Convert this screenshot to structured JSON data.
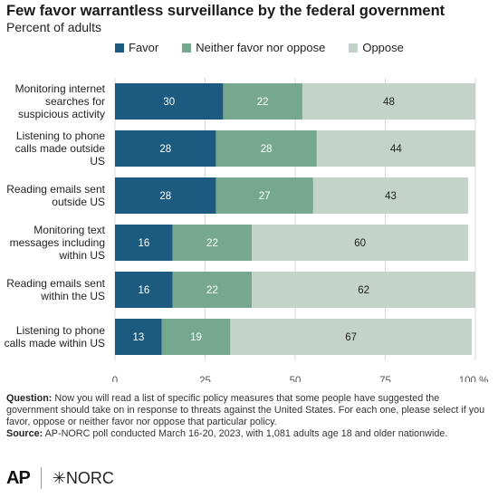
{
  "header": {
    "title": "Few favor warrantless surveillance by the federal government",
    "subtitle": "Percent of adults"
  },
  "colors": {
    "favor": "#1c5b7f",
    "neither": "#76a88f",
    "oppose": "#c3d3ca",
    "gridline": "#d9d9d9",
    "axis_text": "#555555"
  },
  "chart_data": {
    "type": "bar",
    "orientation": "horizontal",
    "stacked": true,
    "title": "Few favor warrantless surveillance by the federal government",
    "subtitle": "Percent of adults",
    "categories": [
      "Monitoring internet searches for suspicious activity",
      "Listening to phone calls made outside US",
      "Reading emails sent outside US",
      "Monitoring text messages including within US",
      "Reading emails sent within the US",
      "Listening to phone calls made within US"
    ],
    "category_lines": [
      [
        "Monitoring internet",
        "searches for",
        "suspicious activity"
      ],
      [
        "Listening to phone",
        "calls made outside",
        "US"
      ],
      [
        "Reading emails sent",
        "outside US"
      ],
      [
        "Monitoring text",
        "messages including",
        "within US"
      ],
      [
        "Reading emails sent",
        "within the US"
      ],
      [
        "Listening to phone",
        "calls made within US"
      ]
    ],
    "series": [
      {
        "name": "Favor",
        "values": [
          30,
          28,
          28,
          16,
          16,
          13
        ]
      },
      {
        "name": "Neither favor nor oppose",
        "values": [
          22,
          28,
          27,
          22,
          22,
          19
        ]
      },
      {
        "name": "Oppose",
        "values": [
          48,
          44,
          43,
          60,
          62,
          67
        ]
      }
    ],
    "xlim": [
      0,
      100
    ],
    "xticks": [
      "0",
      "25",
      "50",
      "75",
      "100 %"
    ],
    "xtick_values": [
      0,
      25,
      50,
      75,
      100
    ],
    "legend_position": "top",
    "grid": true
  },
  "legend": {
    "favor": "Favor",
    "neither": "Neither favor nor oppose",
    "oppose": "Oppose"
  },
  "footnote": {
    "question_label": "Question:",
    "question_text": "Now you will read a list of specific policy measures that some people have suggested the government should take on in response to threats against the United States. For each one, please select if you favor, oppose or neither favor nor oppose that particular policy.",
    "source_label": "Source:",
    "source_text": "AP-NORC poll conducted March 16-20, 2023, with 1,081 adults age 18 and older nationwide."
  },
  "logos": {
    "ap": "AP",
    "norc": "✳NORC"
  }
}
